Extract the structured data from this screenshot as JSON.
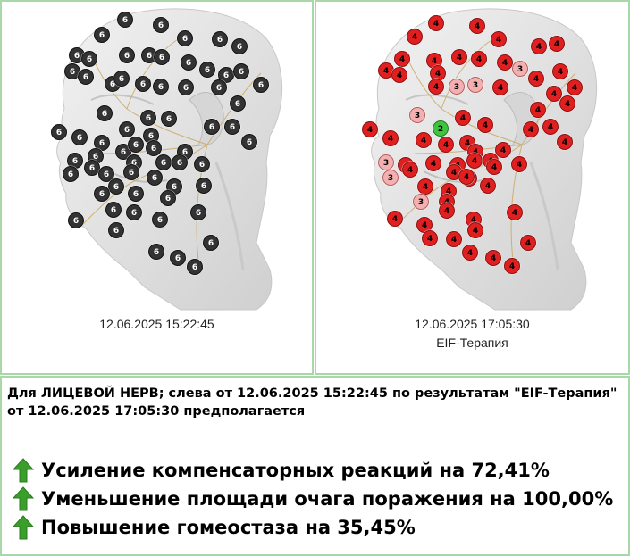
{
  "colors": {
    "panel_border": "#a8d8a8",
    "marker_6": "#333333",
    "marker_4": "#e02020",
    "marker_3": "#f4b0b0",
    "marker_2": "#3fc43f",
    "arrow": "#3a9e2a"
  },
  "left_panel": {
    "timestamp": "12.06.2025 15:22:45",
    "markers": [
      [
        112,
        37,
        "6"
      ],
      [
        138,
        20,
        "6"
      ],
      [
        178,
        26,
        "6"
      ],
      [
        205,
        41,
        "6"
      ],
      [
        244,
        42,
        "6"
      ],
      [
        266,
        50,
        "6"
      ],
      [
        84,
        60,
        "6"
      ],
      [
        98,
        64,
        "6"
      ],
      [
        140,
        60,
        "6"
      ],
      [
        165,
        60,
        "6"
      ],
      [
        179,
        62,
        "6"
      ],
      [
        209,
        68,
        "6"
      ],
      [
        230,
        76,
        "6"
      ],
      [
        251,
        82,
        "6"
      ],
      [
        268,
        78,
        "6"
      ],
      [
        79,
        78,
        "6"
      ],
      [
        94,
        84,
        "6"
      ],
      [
        124,
        92,
        "6"
      ],
      [
        134,
        86,
        "6"
      ],
      [
        158,
        92,
        "6"
      ],
      [
        178,
        95,
        "6"
      ],
      [
        206,
        96,
        "6"
      ],
      [
        243,
        96,
        "6"
      ],
      [
        264,
        114,
        "6"
      ],
      [
        290,
        93,
        "6"
      ],
      [
        115,
        125,
        "6"
      ],
      [
        164,
        130,
        "6"
      ],
      [
        187,
        131,
        "6"
      ],
      [
        64,
        146,
        "6"
      ],
      [
        87,
        152,
        "6"
      ],
      [
        140,
        143,
        "6"
      ],
      [
        167,
        150,
        "6"
      ],
      [
        235,
        140,
        "6"
      ],
      [
        258,
        140,
        "6"
      ],
      [
        277,
        157,
        "6"
      ],
      [
        112,
        158,
        "6"
      ],
      [
        136,
        168,
        "6"
      ],
      [
        150,
        160,
        "6"
      ],
      [
        170,
        164,
        "6"
      ],
      [
        205,
        168,
        "6"
      ],
      [
        82,
        178,
        "6"
      ],
      [
        105,
        173,
        "6"
      ],
      [
        148,
        180,
        "6"
      ],
      [
        181,
        180,
        "6"
      ],
      [
        199,
        180,
        "6"
      ],
      [
        224,
        182,
        "6"
      ],
      [
        77,
        193,
        "6"
      ],
      [
        101,
        186,
        "6"
      ],
      [
        117,
        193,
        "6"
      ],
      [
        145,
        191,
        "6"
      ],
      [
        171,
        197,
        "6"
      ],
      [
        193,
        207,
        "6"
      ],
      [
        226,
        206,
        "6"
      ],
      [
        128,
        207,
        "6"
      ],
      [
        150,
        215,
        "6"
      ],
      [
        83,
        245,
        "6"
      ],
      [
        125,
        233,
        "6"
      ],
      [
        148,
        236,
        "6"
      ],
      [
        177,
        244,
        "6"
      ],
      [
        128,
        256,
        "6"
      ],
      [
        220,
        236,
        "6"
      ],
      [
        173,
        280,
        "6"
      ],
      [
        197,
        287,
        "6"
      ],
      [
        234,
        270,
        "6"
      ],
      [
        216,
        297,
        "6"
      ],
      [
        112,
        215,
        "6"
      ],
      [
        186,
        220,
        "6"
      ]
    ]
  },
  "right_panel": {
    "timestamp": "12.06.2025 17:05:30",
    "method": "EIF-Терапия",
    "markers": [
      [
        462,
        39,
        "4"
      ],
      [
        486,
        24,
        "4"
      ],
      [
        532,
        27,
        "4"
      ],
      [
        556,
        42,
        "4"
      ],
      [
        601,
        50,
        "4"
      ],
      [
        621,
        47,
        "4"
      ],
      [
        430,
        77,
        "4"
      ],
      [
        448,
        64,
        "4"
      ],
      [
        484,
        66,
        "4"
      ],
      [
        512,
        62,
        "4"
      ],
      [
        534,
        64,
        "4"
      ],
      [
        563,
        68,
        "4"
      ],
      [
        580,
        75,
        "3"
      ],
      [
        598,
        86,
        "4"
      ],
      [
        625,
        78,
        "4"
      ],
      [
        445,
        82,
        "4"
      ],
      [
        488,
        80,
        "4"
      ],
      [
        486,
        95,
        "4"
      ],
      [
        509,
        95,
        "3"
      ],
      [
        530,
        93,
        "3"
      ],
      [
        558,
        96,
        "4"
      ],
      [
        618,
        103,
        "4"
      ],
      [
        641,
        96,
        "4"
      ],
      [
        633,
        114,
        "4"
      ],
      [
        600,
        121,
        "4"
      ],
      [
        412,
        143,
        "4"
      ],
      [
        465,
        127,
        "3"
      ],
      [
        491,
        142,
        "2"
      ],
      [
        516,
        130,
        "4"
      ],
      [
        541,
        138,
        "4"
      ],
      [
        592,
        143,
        "4"
      ],
      [
        614,
        140,
        "4"
      ],
      [
        630,
        157,
        "4"
      ],
      [
        435,
        153,
        "4"
      ],
      [
        472,
        155,
        "4"
      ],
      [
        497,
        160,
        "4"
      ],
      [
        521,
        158,
        "4"
      ],
      [
        530,
        168,
        "4"
      ],
      [
        561,
        166,
        "4"
      ],
      [
        430,
        180,
        "3"
      ],
      [
        452,
        183,
        "4"
      ],
      [
        483,
        181,
        "4"
      ],
      [
        510,
        183,
        "4"
      ],
      [
        529,
        178,
        "4"
      ],
      [
        547,
        178,
        "4"
      ],
      [
        579,
        182,
        "4"
      ],
      [
        435,
        197,
        "3"
      ],
      [
        457,
        188,
        "4"
      ],
      [
        506,
        191,
        "4"
      ],
      [
        523,
        198,
        "4"
      ],
      [
        551,
        185,
        "4"
      ],
      [
        474,
        207,
        "4"
      ],
      [
        500,
        212,
        "4"
      ],
      [
        520,
        196,
        "4"
      ],
      [
        544,
        206,
        "4"
      ],
      [
        469,
        224,
        "3"
      ],
      [
        498,
        224,
        "4"
      ],
      [
        440,
        243,
        "4"
      ],
      [
        473,
        250,
        "4"
      ],
      [
        498,
        234,
        "4"
      ],
      [
        528,
        244,
        "4"
      ],
      [
        574,
        236,
        "4"
      ],
      [
        479,
        265,
        "4"
      ],
      [
        506,
        266,
        "4"
      ],
      [
        530,
        256,
        "4"
      ],
      [
        589,
        270,
        "4"
      ],
      [
        524,
        281,
        "4"
      ],
      [
        550,
        287,
        "4"
      ],
      [
        571,
        296,
        "4"
      ]
    ]
  },
  "report": {
    "description": "Для ЛИЦЕВОЙ НЕРВ; слева от 12.06.2025 15:22:45 по результатам \"EIF-Терапия\" от 12.06.2025 17:05:30 предполагается",
    "results": [
      {
        "icon": "green-up-arrow-icon",
        "text": "Усиление компенсаторных реакций на 72,41%"
      },
      {
        "icon": "green-up-arrow-icon",
        "text": "Уменьшение площади очага поражения на 100,00%"
      },
      {
        "icon": "green-up-arrow-icon",
        "text": "Повышение гомеостаза на 35,45%"
      }
    ]
  }
}
